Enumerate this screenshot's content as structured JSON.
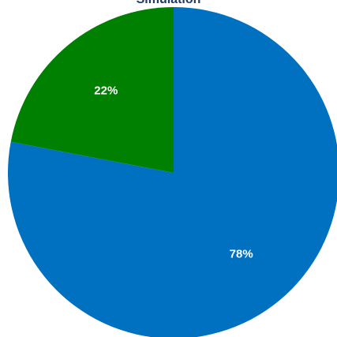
{
  "chart_data": {
    "type": "pie",
    "title": "Simulation",
    "slices": [
      {
        "label": "78%",
        "value": 78,
        "color": "#0070C0"
      },
      {
        "label": "22%",
        "value": 22,
        "color": "#008000"
      }
    ]
  }
}
